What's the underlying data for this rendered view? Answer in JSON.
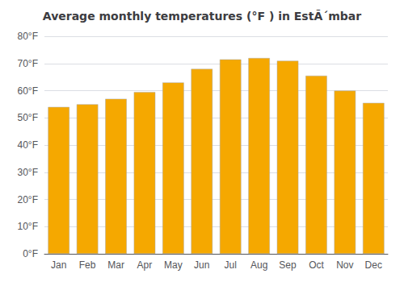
{
  "chart_data": {
    "type": "bar",
    "title": "Average monthly temperatures (°F ) in EstÃ´mbar",
    "categories": [
      "Jan",
      "Feb",
      "Mar",
      "Apr",
      "May",
      "Jun",
      "Jul",
      "Aug",
      "Sep",
      "Oct",
      "Nov",
      "Dec"
    ],
    "values": [
      54,
      55,
      57,
      59.5,
      63,
      68,
      71.5,
      72,
      71,
      65.5,
      60,
      55.5
    ],
    "color": "#F5A800",
    "ylim": [
      0,
      80
    ],
    "yticks": [
      {
        "value": 0,
        "label": "0°F"
      },
      {
        "value": 10,
        "label": "10°F"
      },
      {
        "value": 20,
        "label": "20°F"
      },
      {
        "value": 30,
        "label": "30°F"
      },
      {
        "value": 40,
        "label": "40°F"
      },
      {
        "value": 50,
        "label": "50°F"
      },
      {
        "value": 60,
        "label": "60°F"
      },
      {
        "value": 70,
        "label": "70°F"
      },
      {
        "value": 80,
        "label": "80°F"
      }
    ],
    "grid": true
  }
}
